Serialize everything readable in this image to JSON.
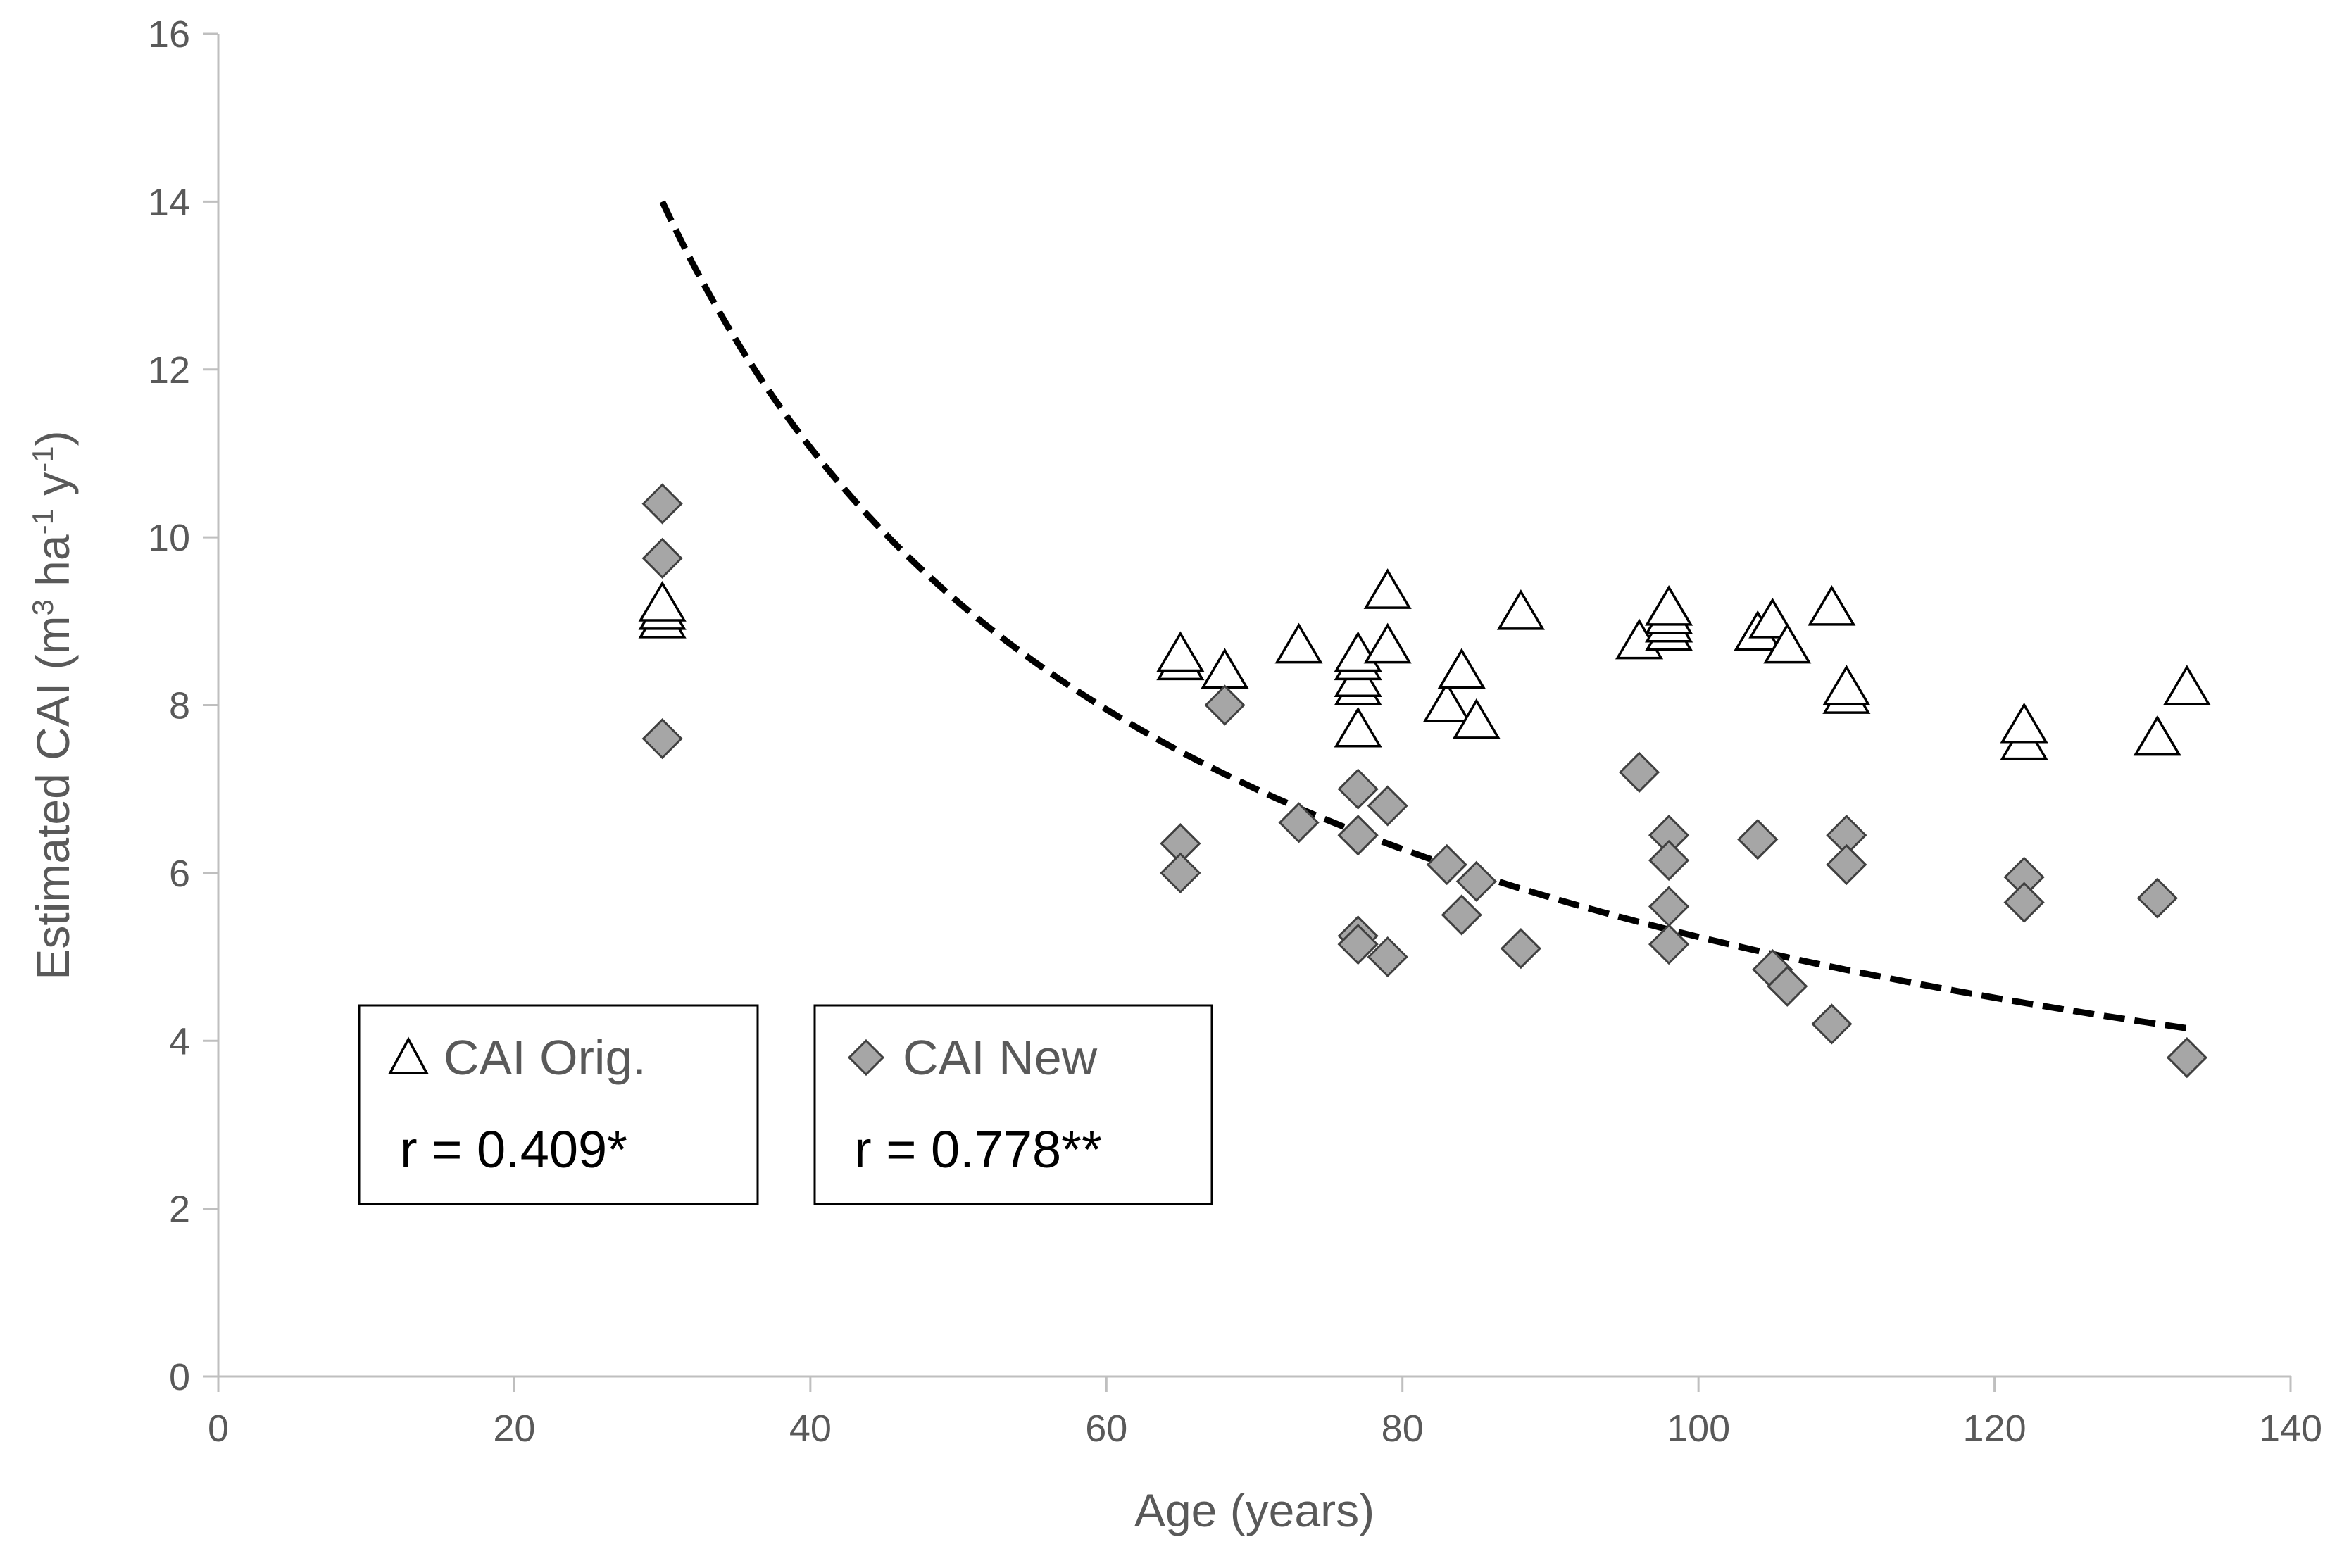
{
  "colors": {
    "axis": "#bfbfbf",
    "text": "#595959",
    "orig_marker_fill": "#ffffff",
    "orig_marker_stroke": "#000000",
    "new_marker_fill": "#a6a6a6",
    "new_marker_stroke": "#404040",
    "trend": "#000000"
  },
  "chart_data": {
    "type": "scatter",
    "title": "",
    "xlabel": "Age (years)",
    "ylabel_main": "Estimated CAI (m",
    "ylabel_sup1": "3",
    "ylabel_mid": " ha",
    "ylabel_sup2": "-1",
    "ylabel_end": " y",
    "ylabel_sup3": "-1",
    "ylabel_close": ")",
    "xlim": [
      0,
      140
    ],
    "ylim": [
      0,
      16
    ],
    "xticks": [
      0,
      20,
      40,
      60,
      80,
      100,
      120,
      140
    ],
    "yticks": [
      0,
      2,
      4,
      6,
      8,
      10,
      12,
      14,
      16
    ],
    "grid": false,
    "series": [
      {
        "name": "CAI Orig.",
        "marker": "triangle",
        "points": [
          [
            30,
            9.0
          ],
          [
            30,
            9.1
          ],
          [
            30,
            9.2
          ],
          [
            65,
            8.5
          ],
          [
            65,
            8.6
          ],
          [
            68,
            8.4
          ],
          [
            73,
            8.7
          ],
          [
            77,
            7.7
          ],
          [
            77,
            8.2
          ],
          [
            77,
            8.3
          ],
          [
            77,
            8.5
          ],
          [
            77,
            8.6
          ],
          [
            79,
            8.7
          ],
          [
            79,
            9.35
          ],
          [
            83,
            8.0
          ],
          [
            84,
            8.4
          ],
          [
            85,
            7.8
          ],
          [
            88,
            9.1
          ],
          [
            96,
            8.75
          ],
          [
            98,
            8.85
          ],
          [
            98,
            8.95
          ],
          [
            98,
            9.05
          ],
          [
            98,
            9.15
          ],
          [
            104,
            8.85
          ],
          [
            105,
            9.0
          ],
          [
            106,
            8.7
          ],
          [
            109,
            9.15
          ],
          [
            110,
            8.1
          ],
          [
            110,
            8.2
          ],
          [
            122,
            7.55
          ],
          [
            122,
            7.75
          ],
          [
            131,
            7.6
          ],
          [
            133,
            8.2
          ]
        ]
      },
      {
        "name": "CAI New",
        "marker": "diamond",
        "points": [
          [
            30,
            10.4
          ],
          [
            30,
            9.75
          ],
          [
            30,
            7.6
          ],
          [
            65,
            6.35
          ],
          [
            65,
            6.0
          ],
          [
            68,
            8.0
          ],
          [
            73,
            6.6
          ],
          [
            77,
            7.0
          ],
          [
            77,
            6.45
          ],
          [
            77,
            5.25
          ],
          [
            77,
            5.15
          ],
          [
            79,
            6.8
          ],
          [
            79,
            5.0
          ],
          [
            83,
            6.1
          ],
          [
            84,
            5.5
          ],
          [
            85,
            5.9
          ],
          [
            88,
            5.1
          ],
          [
            96,
            7.2
          ],
          [
            98,
            6.45
          ],
          [
            98,
            6.15
          ],
          [
            98,
            5.6
          ],
          [
            98,
            5.15
          ],
          [
            104,
            6.4
          ],
          [
            105,
            4.85
          ],
          [
            106,
            4.65
          ],
          [
            109,
            4.2
          ],
          [
            110,
            6.45
          ],
          [
            110,
            6.1
          ],
          [
            122,
            5.95
          ],
          [
            122,
            5.65
          ],
          [
            131,
            5.7
          ],
          [
            133,
            3.8
          ]
        ]
      }
    ],
    "trendline": {
      "style": "dashed",
      "model": "power",
      "equation_hint": "y = a * x^b",
      "x_range": [
        30,
        133
      ],
      "anchor_points": [
        [
          30,
          14.0
        ],
        [
          133,
          4.15
        ]
      ]
    },
    "legend_boxes": [
      {
        "label": "CAI Orig.",
        "symbol": "△",
        "stat": "r = 0.409*"
      },
      {
        "label": "CAI New",
        "symbol": "◆",
        "stat": "r = 0.778**"
      }
    ]
  }
}
